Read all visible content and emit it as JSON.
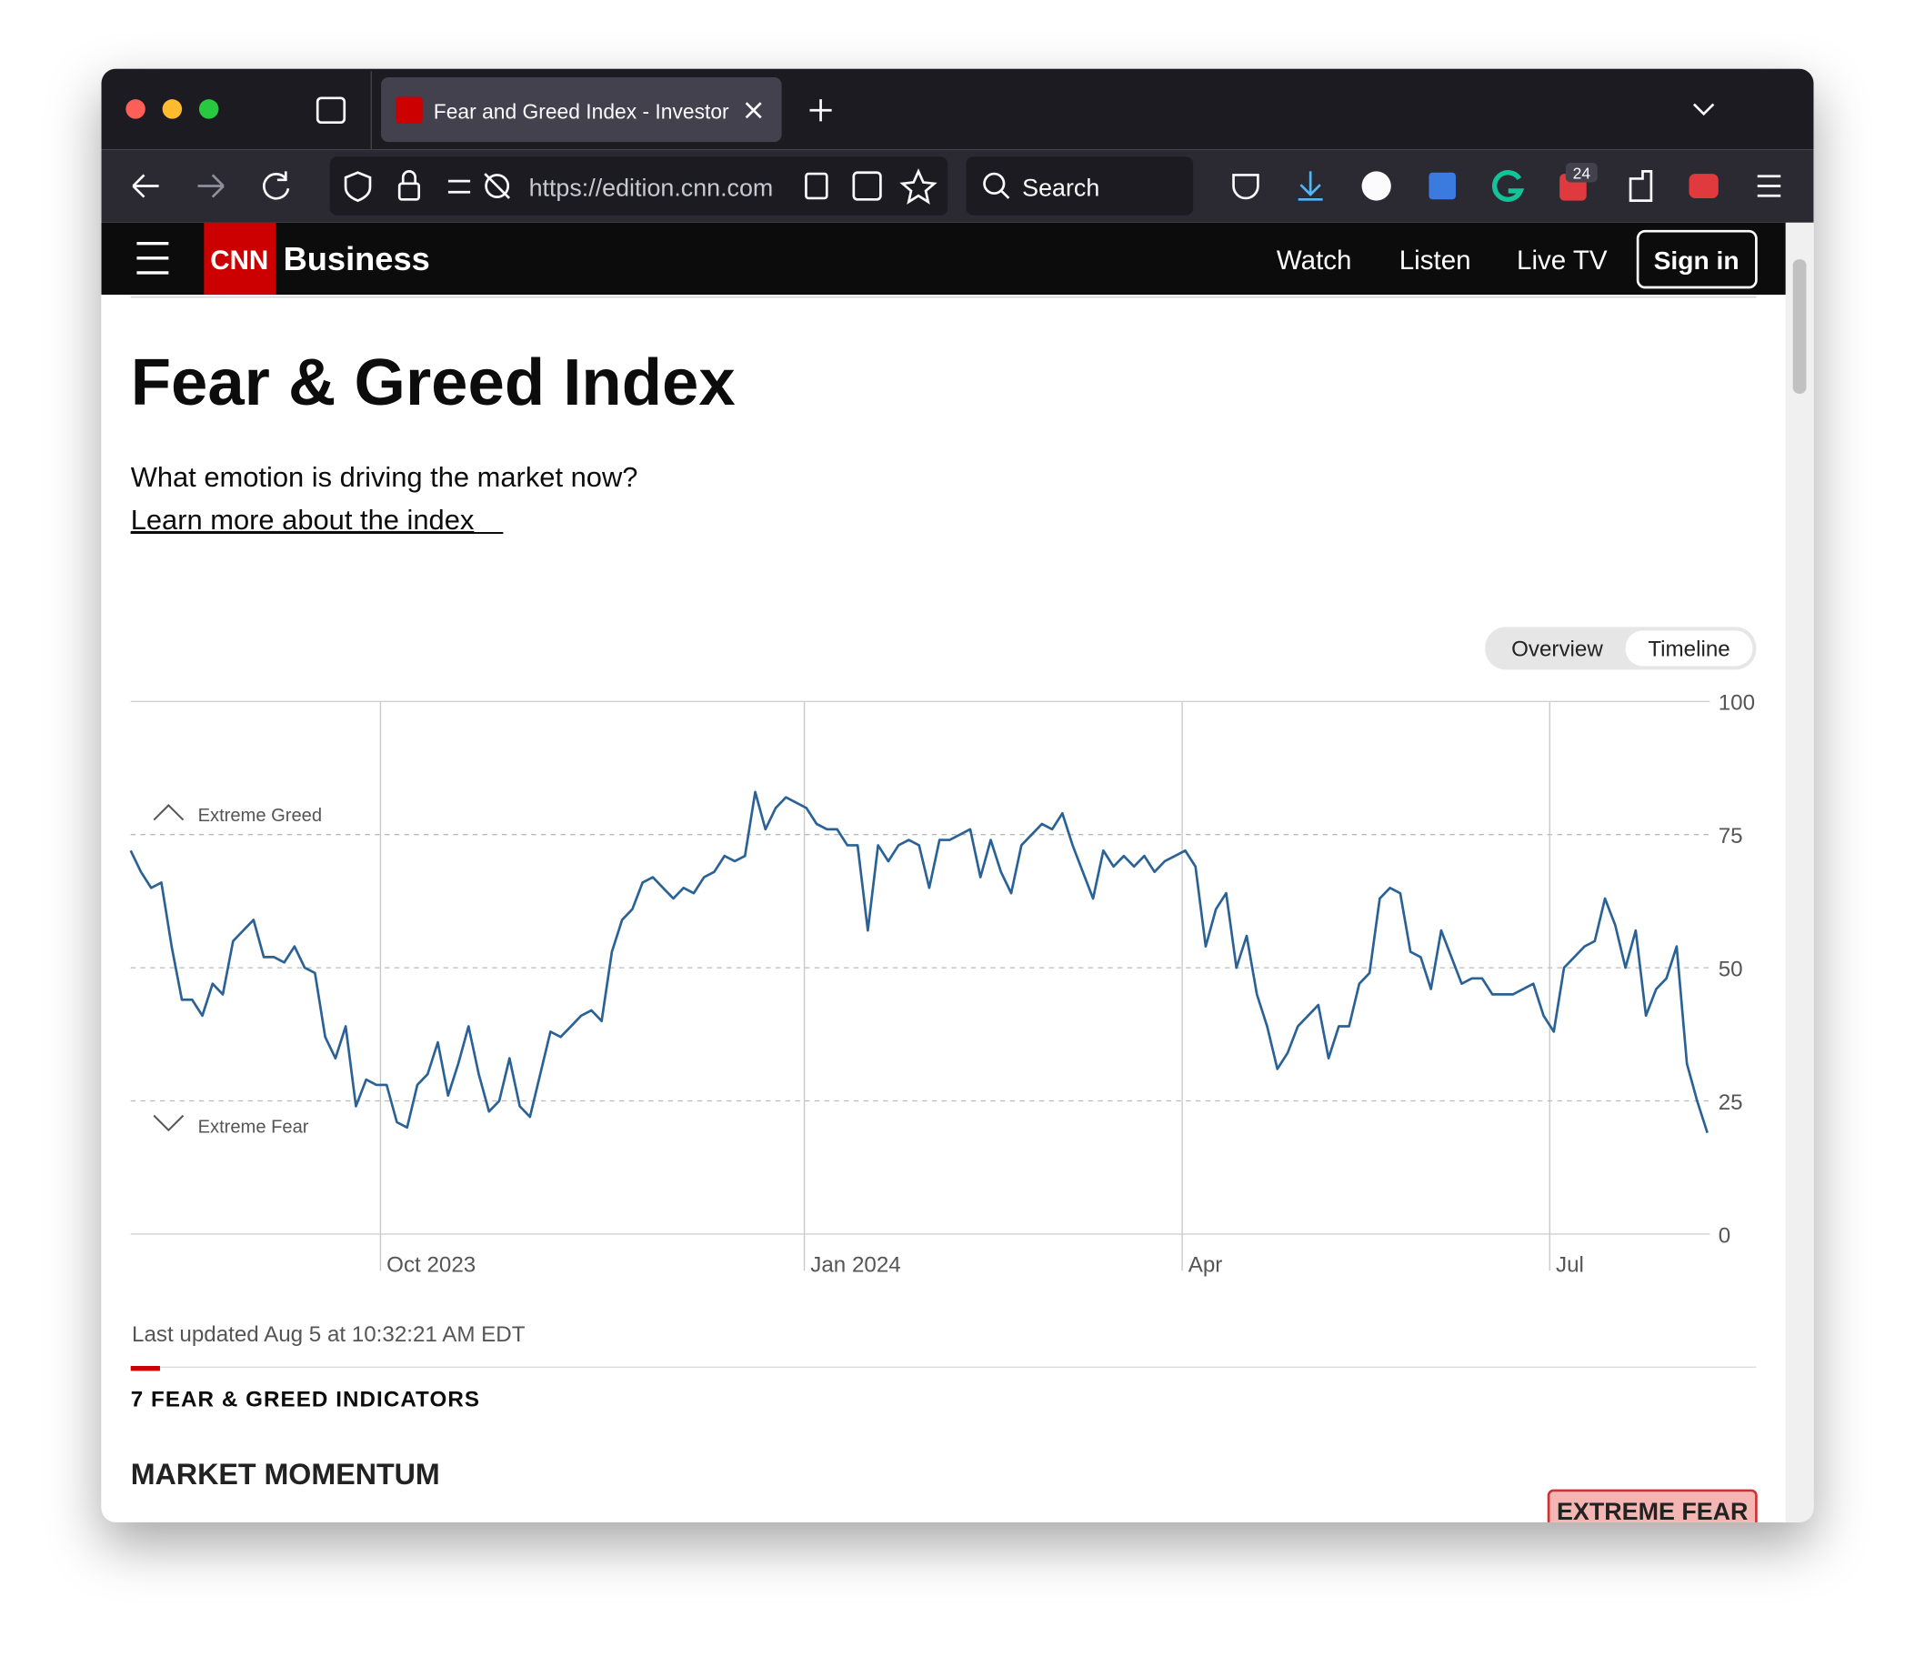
{
  "browser": {
    "tab_title": "Fear and Greed Index - Investor",
    "url": "https://edition.cnn.com",
    "search": "Search",
    "badge": "24"
  },
  "header": {
    "logo": "CNN",
    "brand": "Business",
    "nav": [
      "Watch",
      "Listen",
      "Live TV"
    ],
    "sign_in": "Sign in"
  },
  "page": {
    "title": "Fear & Greed Index",
    "subtitle": "What emotion is driving the market now?",
    "link": "Learn more about the index",
    "toggle": [
      "Overview",
      "Timeline"
    ],
    "updated": "Last updated Aug 5 at 10:32:21 AM EDT",
    "section_label": "7 FEAR & GREED INDICATORS",
    "indicator": "MARKET MOMENTUM",
    "rating": "EXTREME FEAR"
  },
  "chart_data": {
    "type": "line",
    "color": "#2b6296",
    "annotations": [
      "Extreme Greed",
      "Extreme Fear"
    ],
    "ylim": [
      0,
      100
    ],
    "yticks": [
      0,
      25,
      50,
      75,
      100
    ],
    "xlim": [
      0,
      154
    ],
    "xticks": [
      {
        "value": 24.4,
        "label": "Oct 2023"
      },
      {
        "value": 65.8,
        "label": "Jan 2024"
      },
      {
        "value": 102.7,
        "label": "Apr"
      },
      {
        "value": 138.6,
        "label": "Jul"
      }
    ],
    "values": [
      72,
      68,
      65,
      66,
      54,
      44,
      44,
      41,
      47,
      45,
      55,
      57,
      59,
      52,
      52,
      51,
      54,
      50,
      49,
      37,
      33,
      39,
      24,
      29,
      28,
      28,
      21,
      20,
      28,
      30,
      36,
      26,
      32,
      39,
      30,
      23,
      25,
      33,
      24,
      22,
      30,
      38,
      37,
      39,
      41,
      42,
      40,
      53,
      59,
      61,
      66,
      67,
      65,
      63,
      65,
      64,
      67,
      68,
      71,
      70,
      71,
      83,
      76,
      80,
      82,
      81,
      80,
      77,
      76,
      76,
      73,
      73,
      57,
      73,
      70,
      73,
      74,
      73,
      65,
      74,
      74,
      75,
      76,
      67,
      74,
      68,
      64,
      73,
      75,
      77,
      76,
      79,
      73,
      68,
      63,
      72,
      69,
      71,
      69,
      71,
      68,
      70,
      71,
      72,
      69,
      54,
      61,
      64,
      50,
      56,
      45,
      39,
      31,
      34,
      39,
      41,
      43,
      33,
      39,
      39,
      47,
      49,
      63,
      65,
      64,
      53,
      52,
      46,
      57,
      52,
      47,
      48,
      48,
      45,
      45,
      45,
      46,
      47,
      41,
      38,
      50,
      52,
      54,
      55,
      63,
      58,
      50,
      57,
      41,
      46,
      48,
      54,
      32,
      25,
      19
    ]
  }
}
